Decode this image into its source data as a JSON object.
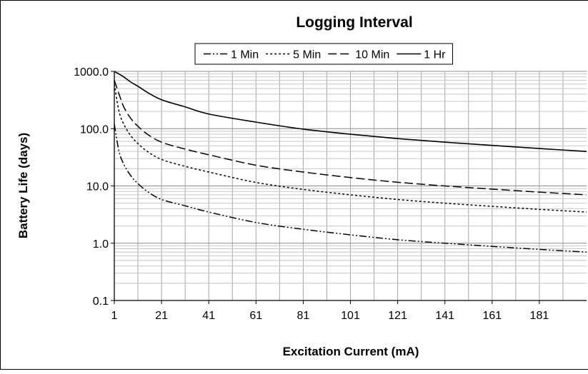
{
  "chart_data": {
    "type": "line",
    "title": "Logging Interval",
    "xlabel": "Excitation Current (mA)",
    "ylabel": "Battery Life (days)",
    "y_scale": "log",
    "ylim": [
      0.1,
      1000
    ],
    "xlim": [
      1,
      201
    ],
    "x_ticks": [
      "1",
      "21",
      "41",
      "61",
      "81",
      "101",
      "121",
      "141",
      "161",
      "181"
    ],
    "y_ticks": [
      "0.1",
      "1.0",
      "10.0",
      "100.0",
      "1000.0"
    ],
    "grid": true,
    "legend_position": "top",
    "x": [
      1,
      3,
      5,
      8,
      11,
      15,
      21,
      31,
      41,
      61,
      81,
      101,
      121,
      141,
      161,
      181,
      201
    ],
    "series": [
      {
        "name": "1 Min",
        "dash": "dash-dot-dot",
        "values": [
          120,
          40,
          24,
          15,
          11,
          8,
          5.8,
          4.5,
          3.5,
          2.3,
          1.75,
          1.4,
          1.15,
          1.0,
          0.88,
          0.78,
          0.7
        ]
      },
      {
        "name": "5 Min",
        "dash": "dotted",
        "values": [
          600,
          200,
          120,
          75,
          55,
          40,
          29,
          22,
          17.5,
          11.5,
          8.7,
          7.0,
          5.8,
          5.0,
          4.4,
          3.9,
          3.5
        ]
      },
      {
        "name": "10 Min",
        "dash": "dashed",
        "values": [
          700,
          400,
          240,
          150,
          110,
          80,
          58,
          44,
          35,
          23,
          17.5,
          14,
          11.6,
          10,
          8.8,
          7.8,
          7.0
        ]
      },
      {
        "name": "1 Hr",
        "dash": "solid",
        "values": [
          1000,
          900,
          800,
          650,
          550,
          430,
          320,
          240,
          180,
          130,
          98,
          80,
          67,
          58,
          51,
          45,
          40
        ]
      }
    ]
  }
}
